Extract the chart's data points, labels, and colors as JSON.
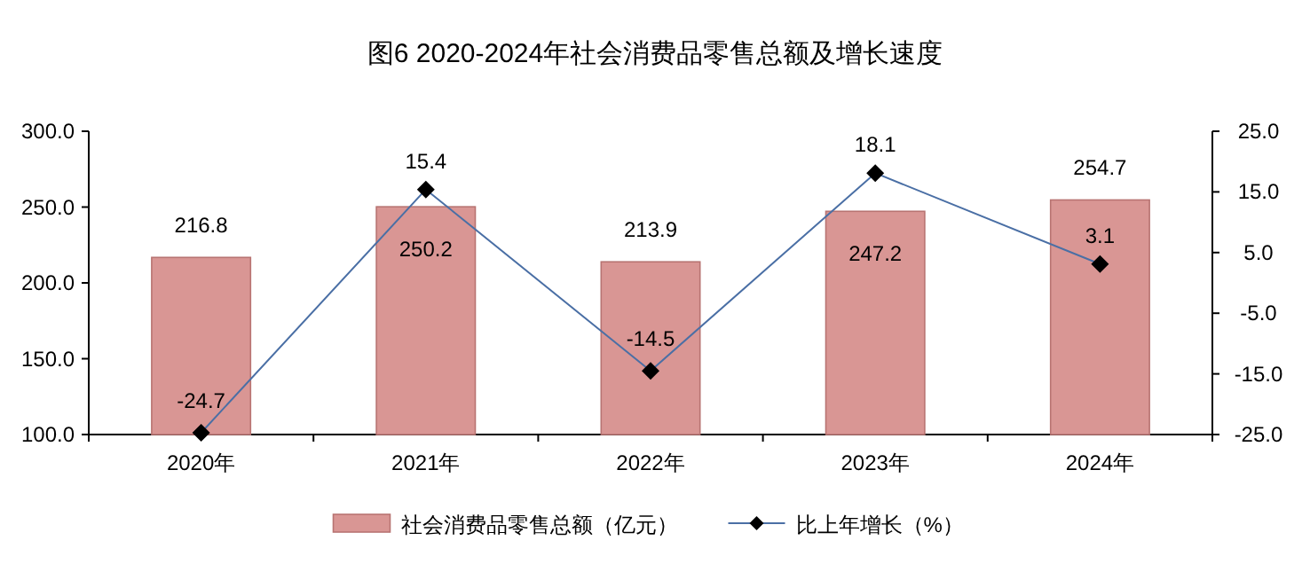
{
  "chart_data": {
    "type": "bar",
    "title": "图6 2020-2024年社会消费品零售总额及增长速度",
    "categories": [
      "2020年",
      "2021年",
      "2022年",
      "2023年",
      "2024年"
    ],
    "series": [
      {
        "name": "社会消费品零售总额（亿元）",
        "color": "#d99694",
        "values": [
          216.8,
          250.2,
          213.9,
          247.2,
          254.7
        ]
      },
      {
        "name": "比上年增长（%）",
        "type": "line",
        "axis": "y2",
        "color": "#4a6fa5",
        "values": [
          -24.7,
          15.4,
          -14.5,
          18.1,
          3.1
        ]
      }
    ],
    "ylim": [
      100,
      300
    ],
    "yticks": [
      {
        "value": 100,
        "label": "100.0"
      },
      {
        "value": 150,
        "label": "150.0"
      },
      {
        "value": 200,
        "label": "200.0"
      },
      {
        "value": 250,
        "label": "250.0"
      },
      {
        "value": 300,
        "label": "300.0"
      }
    ],
    "y2lim": [
      -25,
      25
    ],
    "y2ticks": [
      {
        "value": -25,
        "label": "-25.0"
      },
      {
        "value": -15,
        "label": "-15.0"
      },
      {
        "value": -5,
        "label": "-5.0"
      },
      {
        "value": 5,
        "label": "5.0"
      },
      {
        "value": 15,
        "label": "15.0"
      },
      {
        "value": 25,
        "label": "25.0"
      }
    ],
    "data_labels": true,
    "legend": "bottom",
    "marker": "diamond",
    "grid": false
  }
}
